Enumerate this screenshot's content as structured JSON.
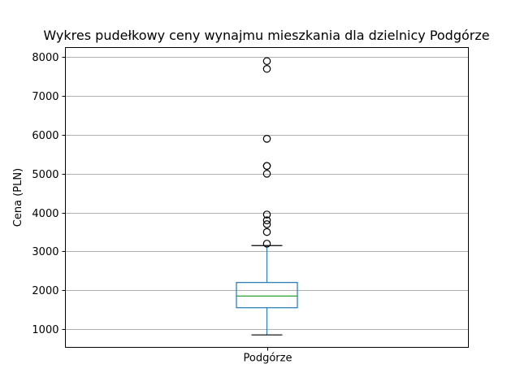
{
  "chart_data": {
    "type": "box",
    "title": "Wykres pudełkowy ceny wynajmu mieszkania dla dzielnicy  Podgórze",
    "xlabel": "",
    "ylabel": "Cena (PLN)",
    "categories": [
      "Podgórze"
    ],
    "ylim": [
      530,
      8250
    ],
    "yticks": [
      1000,
      2000,
      3000,
      4000,
      5000,
      6000,
      7000,
      8000
    ],
    "grid": "horizontal",
    "boxes": [
      {
        "category": "Podgórze",
        "whisker_low": 850,
        "q1": 1550,
        "median": 1850,
        "q3": 2200,
        "whisker_high": 3150,
        "outliers": [
          3200,
          3500,
          3700,
          3800,
          3950,
          5000,
          5200,
          5200,
          5900,
          7700,
          7900
        ]
      }
    ],
    "colors": {
      "box": "#1f77b4",
      "median": "#2ca02c",
      "whisker_cap": "#000000",
      "grid": "#b0b0b0",
      "outlier_edge": "#000000"
    }
  }
}
